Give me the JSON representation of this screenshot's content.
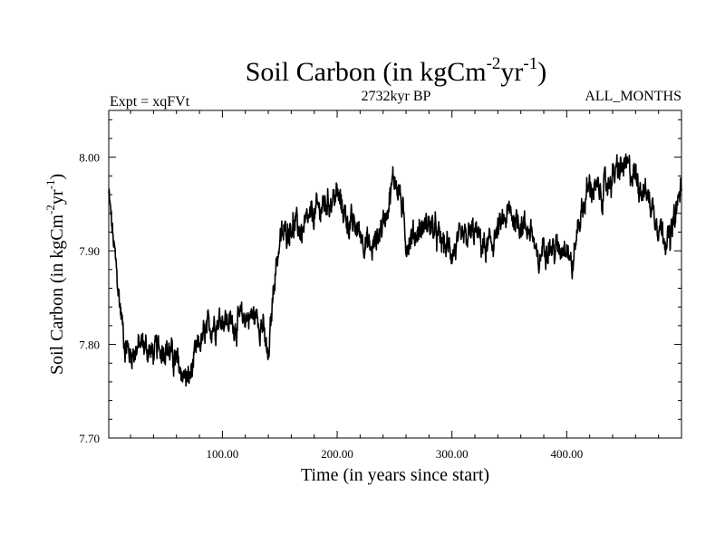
{
  "chart_data": {
    "type": "line",
    "title": {
      "main": "Soil Carbon (in kgCm",
      "sup1": "-2",
      "mid": "yr",
      "sup2": "-1",
      "end": ")"
    },
    "subtitle_left": "Expt = xqFVt",
    "subtitle_center": "2732kyr BP",
    "subtitle_right": "ALL_MONTHS",
    "xlabel": "Time (in years since start)",
    "ylabel": {
      "main": "Soil Carbon (in kgCm",
      "sup1": "-2",
      "mid": "yr",
      "sup2": "-1",
      "end": ")"
    },
    "xlim": [
      1,
      500
    ],
    "ylim": [
      7.7,
      8.05
    ],
    "x_ticks": [
      100,
      200,
      300,
      400
    ],
    "x_tick_labels": [
      "100.00",
      "200.00",
      "300.00",
      "400.00"
    ],
    "y_ticks": [
      7.7,
      7.8,
      7.9,
      8.0
    ],
    "y_tick_labels": [
      "7.70",
      "7.80",
      "7.90",
      "8.00"
    ],
    "series": [
      {
        "name": "Soil Carbon",
        "color": "#000000",
        "noise_amplitude": 0.012,
        "control_x": [
          1,
          5,
          10,
          15,
          20,
          30,
          40,
          50,
          60,
          70,
          75,
          80,
          90,
          100,
          110,
          120,
          130,
          135,
          140,
          145,
          150,
          160,
          170,
          180,
          190,
          200,
          210,
          220,
          230,
          240,
          250,
          255,
          260,
          270,
          280,
          290,
          300,
          310,
          320,
          330,
          340,
          350,
          360,
          370,
          375,
          380,
          390,
          400,
          405,
          410,
          420,
          430,
          440,
          450,
          460,
          470,
          480,
          490,
          495,
          500
        ],
        "control_y": [
          7.96,
          7.91,
          7.85,
          7.8,
          7.79,
          7.8,
          7.79,
          7.8,
          7.78,
          7.76,
          7.78,
          7.8,
          7.82,
          7.83,
          7.82,
          7.83,
          7.83,
          7.82,
          7.78,
          7.87,
          7.91,
          7.93,
          7.92,
          7.94,
          7.95,
          7.96,
          7.93,
          7.92,
          7.9,
          7.93,
          7.98,
          7.96,
          7.91,
          7.92,
          7.93,
          7.91,
          7.9,
          7.91,
          7.92,
          7.9,
          7.92,
          7.94,
          7.93,
          7.92,
          7.88,
          7.91,
          7.9,
          7.91,
          7.88,
          7.93,
          7.97,
          7.96,
          7.98,
          7.99,
          7.98,
          7.96,
          7.93,
          7.91,
          7.94,
          7.97
        ]
      }
    ]
  }
}
